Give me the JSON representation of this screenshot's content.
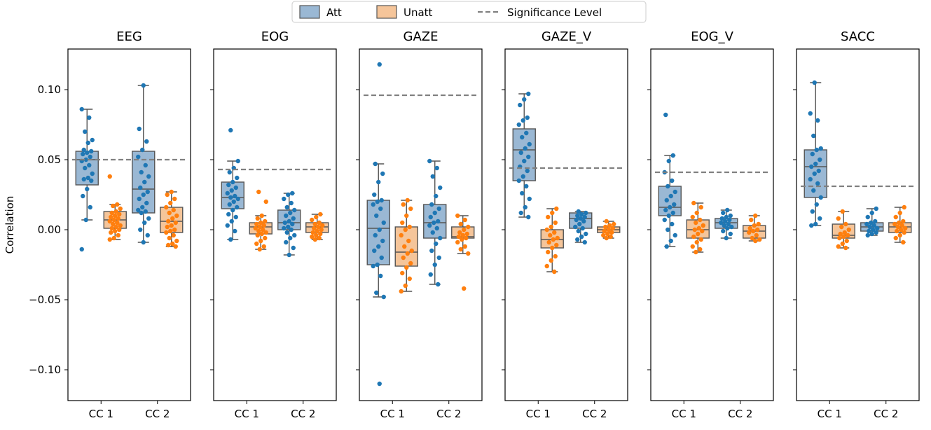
{
  "chart_data": {
    "type": "box-strip",
    "ylabel": "Correlation",
    "ylim": [
      -0.122,
      0.129
    ],
    "yticks": [
      -0.1,
      -0.05,
      0.0,
      0.05,
      0.1
    ],
    "ytick_labels": [
      "−0.10",
      "−0.05",
      "0.00",
      "0.05",
      "0.10"
    ],
    "categories": [
      "CC 1",
      "CC 2"
    ],
    "legend": {
      "position": "top-center",
      "entries": [
        {
          "label": "Att",
          "kind": "box",
          "fill": "#9ab8d4",
          "edge": "#555555"
        },
        {
          "label": "Unatt",
          "kind": "box",
          "fill": "#f5c59a",
          "edge": "#555555"
        },
        {
          "label": "Significance Level",
          "kind": "dashed-line",
          "color": "#808080"
        }
      ]
    },
    "colors": {
      "att_box": "#9ab8d4",
      "unatt_box": "#f5c59a",
      "att_point": "#1f77b4",
      "unatt_point": "#ff7f0e",
      "significance": "#808080",
      "edge": "#555555"
    },
    "panels": [
      {
        "title": "EEG",
        "significance": 0.05,
        "groups": [
          {
            "att": {
              "box": {
                "whislo": 0.007,
                "q1": 0.032,
                "med": 0.05,
                "q3": 0.056,
                "whishi": 0.086
              },
              "points": [
                0.086,
                0.08,
                0.07,
                0.064,
                0.062,
                0.057,
                0.056,
                0.055,
                0.054,
                0.052,
                0.05,
                0.049,
                0.046,
                0.044,
                0.04,
                0.037,
                0.036,
                0.035,
                0.029,
                0.024,
                0.016,
                0.007,
                -0.014
              ]
            },
            "unatt": {
              "box": {
                "whislo": -0.007,
                "q1": 0.001,
                "med": 0.007,
                "q3": 0.013,
                "whishi": 0.018
              },
              "points": [
                0.038,
                0.018,
                0.017,
                0.015,
                0.013,
                0.012,
                0.011,
                0.01,
                0.009,
                0.008,
                0.007,
                0.006,
                0.005,
                0.004,
                0.003,
                0.002,
                0.001,
                0.0,
                -0.001,
                -0.002,
                -0.004,
                -0.006,
                -0.007
              ]
            }
          },
          {
            "att": {
              "box": {
                "whislo": -0.009,
                "q1": 0.012,
                "med": 0.029,
                "q3": 0.056,
                "whishi": 0.103
              },
              "points": [
                0.103,
                0.072,
                0.063,
                0.057,
                0.052,
                0.046,
                0.041,
                0.038,
                0.034,
                0.03,
                0.027,
                0.025,
                0.022,
                0.019,
                0.016,
                0.014,
                0.013,
                0.012,
                0.008,
                0.005,
                0.0,
                -0.004,
                -0.009
              ]
            },
            "unatt": {
              "box": {
                "whislo": -0.012,
                "q1": -0.002,
                "med": 0.006,
                "q3": 0.016,
                "whishi": 0.027
              },
              "points": [
                0.027,
                0.025,
                0.022,
                0.019,
                0.016,
                0.014,
                0.012,
                0.01,
                0.008,
                0.006,
                0.005,
                0.003,
                0.002,
                0.0,
                -0.001,
                -0.002,
                -0.004,
                -0.006,
                -0.008,
                -0.01,
                -0.011,
                -0.012
              ]
            }
          }
        ]
      },
      {
        "title": "EOG",
        "significance": 0.043,
        "groups": [
          {
            "att": {
              "box": {
                "whislo": -0.007,
                "q1": 0.015,
                "med": 0.023,
                "q3": 0.034,
                "whishi": 0.049
              },
              "points": [
                0.071,
                0.049,
                0.044,
                0.041,
                0.037,
                0.034,
                0.032,
                0.03,
                0.028,
                0.026,
                0.024,
                0.023,
                0.022,
                0.02,
                0.018,
                0.016,
                0.014,
                0.011,
                0.009,
                0.006,
                0.003,
                -0.001,
                -0.007
              ]
            },
            "unatt": {
              "box": {
                "whislo": -0.014,
                "q1": -0.003,
                "med": 0.002,
                "q3": 0.005,
                "whishi": 0.01
              },
              "points": [
                0.027,
                0.02,
                0.01,
                0.008,
                0.006,
                0.005,
                0.004,
                0.003,
                0.002,
                0.001,
                0.0,
                -0.001,
                -0.002,
                -0.003,
                -0.004,
                -0.006,
                -0.008,
                -0.01,
                -0.012,
                -0.014
              ]
            }
          },
          {
            "att": {
              "box": {
                "whislo": -0.018,
                "q1": 0.0,
                "med": 0.005,
                "q3": 0.014,
                "whishi": 0.026
              },
              "points": [
                0.026,
                0.025,
                0.022,
                0.019,
                0.016,
                0.014,
                0.012,
                0.01,
                0.008,
                0.006,
                0.005,
                0.004,
                0.002,
                0.001,
                0.0,
                -0.002,
                -0.004,
                -0.006,
                -0.009,
                -0.013,
                -0.018
              ]
            },
            "unatt": {
              "box": {
                "whislo": -0.007,
                "q1": -0.002,
                "med": 0.002,
                "q3": 0.005,
                "whishi": 0.011
              },
              "points": [
                0.011,
                0.009,
                0.007,
                0.005,
                0.004,
                0.003,
                0.002,
                0.001,
                0.0,
                -0.001,
                -0.002,
                -0.003,
                -0.004,
                -0.005,
                -0.006,
                -0.007
              ]
            }
          }
        ]
      },
      {
        "title": "GAZE",
        "significance": 0.096,
        "groups": [
          {
            "att": {
              "box": {
                "whislo": -0.048,
                "q1": -0.025,
                "med": 0.001,
                "q3": 0.021,
                "whishi": 0.047
              },
              "points": [
                0.118,
                0.047,
                0.04,
                0.034,
                0.025,
                0.021,
                0.02,
                0.018,
                0.015,
                0.01,
                0.005,
                0.0,
                -0.004,
                -0.008,
                -0.012,
                -0.015,
                -0.02,
                -0.025,
                -0.026,
                -0.033,
                -0.045,
                -0.048,
                -0.11
              ]
            },
            "unatt": {
              "box": {
                "whislo": -0.044,
                "q1": -0.026,
                "med": -0.016,
                "q3": 0.002,
                "whishi": 0.021
              },
              "points": [
                0.021,
                0.018,
                0.015,
                0.01,
                0.005,
                0.002,
                0.0,
                -0.004,
                -0.008,
                -0.012,
                -0.015,
                -0.017,
                -0.02,
                -0.024,
                -0.027,
                -0.031,
                -0.035,
                -0.04,
                -0.044
              ]
            }
          },
          {
            "att": {
              "box": {
                "whislo": -0.039,
                "q1": -0.006,
                "med": 0.005,
                "q3": 0.018,
                "whishi": 0.049
              },
              "points": [
                0.049,
                0.044,
                0.038,
                0.03,
                0.024,
                0.018,
                0.015,
                0.012,
                0.009,
                0.006,
                0.005,
                0.003,
                0.001,
                -0.002,
                -0.006,
                -0.01,
                -0.015,
                -0.02,
                -0.025,
                -0.032,
                -0.039
              ]
            },
            "unatt": {
              "box": {
                "whislo": -0.017,
                "q1": -0.006,
                "med": -0.005,
                "q3": 0.002,
                "whishi": 0.01
              },
              "points": [
                0.01,
                0.007,
                0.004,
                0.002,
                0.0,
                -0.002,
                -0.003,
                -0.004,
                -0.005,
                -0.006,
                -0.007,
                -0.009,
                -0.012,
                -0.014,
                -0.017,
                -0.042
              ]
            }
          }
        ]
      },
      {
        "title": "GAZE_V",
        "significance": 0.044,
        "groups": [
          {
            "att": {
              "box": {
                "whislo": 0.009,
                "q1": 0.035,
                "med": 0.057,
                "q3": 0.072,
                "whishi": 0.097
              },
              "points": [
                0.097,
                0.093,
                0.089,
                0.08,
                0.078,
                0.075,
                0.069,
                0.066,
                0.061,
                0.058,
                0.055,
                0.052,
                0.049,
                0.045,
                0.042,
                0.038,
                0.035,
                0.031,
                0.026,
                0.022,
                0.016,
                0.012,
                0.009
              ]
            },
            "unatt": {
              "box": {
                "whislo": -0.03,
                "q1": -0.013,
                "med": -0.007,
                "q3": 0.0,
                "whishi": 0.015
              },
              "points": [
                0.015,
                0.012,
                0.009,
                0.005,
                0.002,
                0.0,
                -0.002,
                -0.004,
                -0.006,
                -0.007,
                -0.009,
                -0.011,
                -0.013,
                -0.016,
                -0.019,
                -0.022,
                -0.026,
                -0.03
              ]
            }
          },
          {
            "att": {
              "box": {
                "whislo": -0.009,
                "q1": 0.001,
                "med": 0.008,
                "q3": 0.012,
                "whishi": 0.013
              },
              "points": [
                0.013,
                0.012,
                0.011,
                0.01,
                0.009,
                0.008,
                0.007,
                0.006,
                0.004,
                0.002,
                0.001,
                -0.001,
                -0.003,
                -0.005,
                -0.007,
                -0.009
              ]
            },
            "unatt": {
              "box": {
                "whislo": -0.006,
                "q1": -0.002,
                "med": 0.0,
                "q3": 0.002,
                "whishi": 0.006
              },
              "points": [
                0.006,
                0.004,
                0.003,
                0.002,
                0.001,
                0.0,
                -0.001,
                -0.002,
                -0.003,
                -0.004,
                -0.005,
                -0.006
              ]
            }
          }
        ]
      },
      {
        "title": "EOG_V",
        "significance": 0.041,
        "groups": [
          {
            "att": {
              "box": {
                "whislo": -0.012,
                "q1": 0.01,
                "med": 0.016,
                "q3": 0.031,
                "whishi": 0.053
              },
              "points": [
                0.082,
                0.053,
                0.049,
                0.041,
                0.035,
                0.031,
                0.027,
                0.024,
                0.021,
                0.018,
                0.016,
                0.014,
                0.012,
                0.01,
                0.007,
                0.004,
                0.0,
                -0.004,
                -0.008,
                -0.012
              ]
            },
            "unatt": {
              "box": {
                "whislo": -0.016,
                "q1": -0.006,
                "med": 0.0,
                "q3": 0.007,
                "whishi": 0.019
              },
              "points": [
                0.019,
                0.016,
                0.012,
                0.009,
                0.007,
                0.005,
                0.003,
                0.001,
                0.0,
                -0.001,
                -0.003,
                -0.005,
                -0.007,
                -0.009,
                -0.012,
                -0.014,
                -0.016
              ]
            }
          },
          {
            "att": {
              "box": {
                "whislo": -0.006,
                "q1": 0.001,
                "med": 0.005,
                "q3": 0.008,
                "whishi": 0.014
              },
              "points": [
                0.014,
                0.012,
                0.01,
                0.009,
                0.008,
                0.007,
                0.006,
                0.005,
                0.004,
                0.003,
                0.002,
                0.001,
                -0.001,
                -0.003,
                -0.006
              ]
            },
            "unatt": {
              "box": {
                "whislo": -0.008,
                "q1": -0.006,
                "med": -0.001,
                "q3": 0.003,
                "whishi": 0.01
              },
              "points": [
                0.01,
                0.007,
                0.004,
                0.003,
                0.001,
                0.0,
                -0.001,
                -0.002,
                -0.004,
                -0.006,
                -0.007,
                -0.008
              ]
            }
          }
        ]
      },
      {
        "title": "SACC",
        "significance": 0.031,
        "groups": [
          {
            "att": {
              "box": {
                "whislo": 0.003,
                "q1": 0.023,
                "med": 0.045,
                "q3": 0.057,
                "whishi": 0.105
              },
              "points": [
                0.105,
                0.083,
                0.078,
                0.067,
                0.058,
                0.057,
                0.054,
                0.05,
                0.047,
                0.045,
                0.042,
                0.04,
                0.036,
                0.033,
                0.028,
                0.023,
                0.018,
                0.013,
                0.008,
                0.004,
                0.003
              ]
            },
            "unatt": {
              "box": {
                "whislo": -0.013,
                "q1": -0.006,
                "med": -0.004,
                "q3": 0.004,
                "whishi": 0.013
              },
              "points": [
                0.013,
                0.008,
                0.004,
                0.002,
                0.0,
                -0.002,
                -0.003,
                -0.004,
                -0.005,
                -0.006,
                -0.008,
                -0.01,
                -0.012,
                -0.013
              ]
            }
          },
          {
            "att": {
              "box": {
                "whislo": -0.004,
                "q1": -0.001,
                "med": 0.002,
                "q3": 0.005,
                "whishi": 0.015
              },
              "points": [
                0.015,
                0.012,
                0.009,
                0.006,
                0.005,
                0.004,
                0.003,
                0.002,
                0.001,
                0.0,
                -0.001,
                -0.002,
                -0.003,
                -0.004
              ]
            },
            "unatt": {
              "box": {
                "whislo": -0.009,
                "q1": -0.002,
                "med": 0.002,
                "q3": 0.005,
                "whishi": 0.016
              },
              "points": [
                0.016,
                0.012,
                0.009,
                0.006,
                0.005,
                0.004,
                0.003,
                0.002,
                0.001,
                0.0,
                -0.001,
                -0.002,
                -0.004,
                -0.006,
                -0.009
              ]
            }
          }
        ]
      }
    ]
  }
}
